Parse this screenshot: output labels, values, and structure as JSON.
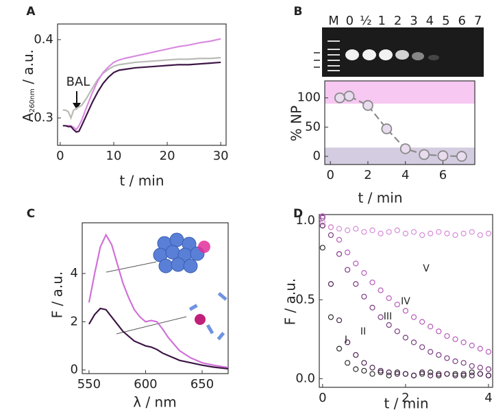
{
  "chart_data": [
    {
      "panel": "A",
      "type": "line",
      "xlabel": "t / min",
      "ylabel": {
        "main": "A",
        "sub": "260nm",
        "rest": " / a.u."
      },
      "annotation": "BAL",
      "xlim": [
        -0.5,
        31
      ],
      "ylim": [
        0.265,
        0.42
      ],
      "xticks": [
        0,
        10,
        20,
        30
      ],
      "yticks": [
        0.3,
        0.4
      ],
      "x": [
        0.5,
        1,
        1.5,
        2,
        2.5,
        3,
        3.5,
        4,
        5,
        6,
        7,
        8,
        9,
        10,
        11,
        12,
        14,
        16,
        18,
        20,
        22,
        24,
        26,
        28,
        30
      ],
      "series": [
        {
          "color": "#b8bcb4",
          "values": [
            0.31,
            0.31,
            0.308,
            0.3,
            0.31,
            0.312,
            0.314,
            0.316,
            0.326,
            0.338,
            0.349,
            0.357,
            0.362,
            0.366,
            0.368,
            0.369,
            0.371,
            0.372,
            0.373,
            0.374,
            0.375,
            0.375,
            0.376,
            0.376,
            0.377
          ]
        },
        {
          "color": "#d98be0",
          "values": [
            0.29,
            0.29,
            0.29,
            0.29,
            0.288,
            0.285,
            0.29,
            0.297,
            0.315,
            0.332,
            0.347,
            0.358,
            0.365,
            0.371,
            0.374,
            0.376,
            0.379,
            0.382,
            0.385,
            0.388,
            0.391,
            0.393,
            0.396,
            0.398,
            0.401
          ]
        },
        {
          "color": "#3d1545",
          "values": [
            0.29,
            0.29,
            0.289,
            0.289,
            0.285,
            0.282,
            0.283,
            0.29,
            0.305,
            0.32,
            0.333,
            0.344,
            0.352,
            0.358,
            0.361,
            0.362,
            0.364,
            0.365,
            0.366,
            0.367,
            0.368,
            0.368,
            0.369,
            0.37,
            0.371
          ]
        }
      ]
    },
    {
      "panel": "B",
      "type": "line",
      "markers": true,
      "dashed": true,
      "xlabel": "t / min",
      "ylabel": "% NP",
      "gel_lanes": [
        "M",
        "0",
        "½",
        "1",
        "2",
        "3",
        "4",
        "5",
        "6",
        "7"
      ],
      "xlim": [
        -0.3,
        7.7
      ],
      "ylim": [
        -14,
        129
      ],
      "xticks": [
        0,
        2,
        4,
        6
      ],
      "yticks": [
        0,
        50,
        100
      ],
      "bands": [
        {
          "from": 90,
          "to": 129,
          "color": "#f6c8f2"
        },
        {
          "from": -14,
          "to": 15,
          "color": "#d4cce0"
        }
      ],
      "x": [
        0.5,
        1,
        2,
        3,
        4,
        5,
        6,
        7
      ],
      "series": [
        {
          "color": "#8a8a8a",
          "values": [
            100,
            103,
            87,
            47,
            13,
            3,
            1,
            0
          ]
        }
      ]
    },
    {
      "panel": "C",
      "type": "line",
      "xlabel": "λ / nm",
      "ylabel": "F / a.u.",
      "xlim": [
        544,
        673
      ],
      "ylim": [
        -0.15,
        6.1
      ],
      "xticks": [
        550,
        600,
        650
      ],
      "yticks": [
        0,
        2,
        4
      ],
      "x": [
        550,
        555,
        560,
        565,
        570,
        575,
        580,
        585,
        590,
        595,
        600,
        605,
        610,
        615,
        620,
        630,
        640,
        650,
        660,
        673
      ],
      "series": [
        {
          "color": "#d070d8",
          "values": [
            2.8,
            4.0,
            5.1,
            5.6,
            5.2,
            4.4,
            3.6,
            3.0,
            2.5,
            2.2,
            2.0,
            2.05,
            2.0,
            1.7,
            1.35,
            0.8,
            0.5,
            0.3,
            0.2,
            0.1
          ]
        },
        {
          "color": "#3d1545",
          "values": [
            1.9,
            2.3,
            2.55,
            2.5,
            2.2,
            1.9,
            1.6,
            1.4,
            1.2,
            1.1,
            1.0,
            0.95,
            0.85,
            0.7,
            0.6,
            0.4,
            0.3,
            0.2,
            0.12,
            0.05
          ]
        }
      ]
    },
    {
      "panel": "D",
      "type": "scatter",
      "xlabel": "t / min",
      "ylabel": "F / a.u.",
      "xlim": [
        -0.08,
        4.1
      ],
      "ylim": [
        -0.055,
        1.04
      ],
      "xticks": [
        0,
        2,
        4
      ],
      "yticks": [
        {
          "value": 0,
          "label": "0.0"
        },
        0.5,
        {
          "value": 1,
          "label": "1.0"
        }
      ],
      "x": [
        0,
        0.2,
        0.4,
        0.6,
        0.8,
        1.0,
        1.2,
        1.4,
        1.6,
        1.8,
        2.0,
        2.2,
        2.4,
        2.6,
        2.8,
        3.0,
        3.2,
        3.4,
        3.6,
        3.8,
        4.0
      ],
      "series": [
        {
          "name": "I",
          "color": "#2a2a2a",
          "values": [
            0.83,
            0.39,
            0.19,
            0.1,
            0.06,
            0.05,
            0.03,
            0.04,
            0.02,
            0.04,
            0.03,
            0.02,
            0.03,
            0.04,
            0.02,
            0.03,
            0.03,
            0.02,
            0.04,
            0.03,
            0.02
          ]
        },
        {
          "name": "II",
          "color": "#4b2050",
          "values": [
            0.97,
            0.6,
            0.37,
            0.23,
            0.15,
            0.1,
            0.07,
            0.05,
            0.04,
            0.03,
            0.03,
            0.02,
            0.04,
            0.02,
            0.03,
            0.03,
            0.02,
            0.03,
            0.02,
            0.03,
            0.02
          ]
        },
        {
          "name": "III",
          "color": "#7a3a80",
          "values": [
            1.02,
            0.91,
            0.79,
            0.69,
            0.6,
            0.52,
            0.45,
            0.39,
            0.34,
            0.3,
            0.26,
            0.23,
            0.2,
            0.17,
            0.15,
            0.13,
            0.11,
            0.1,
            0.08,
            0.07,
            0.06
          ]
        },
        {
          "name": "IV",
          "color": "#b55ab9",
          "values": [
            1.03,
            0.96,
            0.88,
            0.8,
            0.73,
            0.67,
            0.61,
            0.56,
            0.51,
            0.47,
            0.43,
            0.39,
            0.36,
            0.33,
            0.3,
            0.27,
            0.25,
            0.23,
            0.21,
            0.19,
            0.17
          ]
        },
        {
          "name": "V",
          "color": "#d58ad8",
          "values": [
            0.99,
            0.96,
            0.95,
            0.94,
            0.95,
            0.93,
            0.94,
            0.92,
            0.93,
            0.94,
            0.92,
            0.93,
            0.91,
            0.92,
            0.93,
            0.92,
            0.91,
            0.92,
            0.93,
            0.91,
            0.92
          ]
        }
      ]
    }
  ]
}
